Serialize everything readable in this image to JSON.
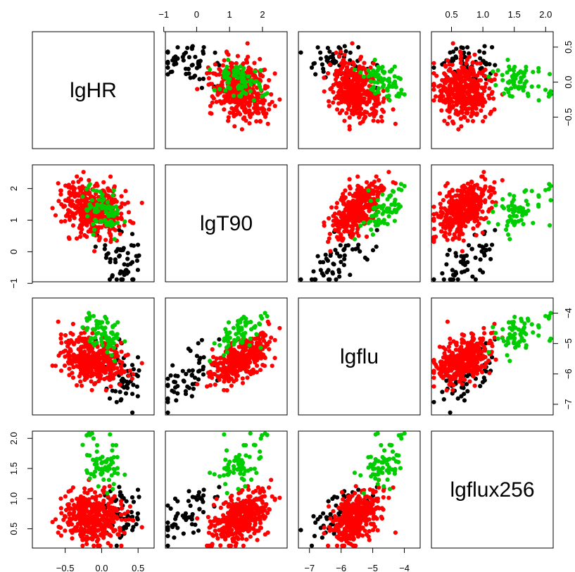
{
  "chart_data": {
    "type": "scatter",
    "subtype": "scatterplot-matrix",
    "variables": [
      "lgHR",
      "lgT90",
      "lgflu",
      "lgflux256"
    ],
    "ranges": {
      "lgHR": [
        -0.95,
        0.72
      ],
      "lgT90": [
        -0.95,
        2.75
      ],
      "lgflu": [
        -7.35,
        -3.5
      ],
      "lgflux256": [
        0.18,
        2.12
      ]
    },
    "axis_ticks": {
      "lgHR": [
        -0.5,
        0.0,
        0.5
      ],
      "lgT90": [
        -1,
        0,
        1,
        2
      ],
      "lgflu": [
        -7,
        -6,
        -5,
        -4
      ],
      "lgflux256": [
        0.5,
        1.0,
        1.5,
        2.0
      ]
    },
    "tick_labels": {
      "lgHR": [
        "−0.5",
        "0.0",
        "0.5"
      ],
      "lgT90": [
        "−1",
        "0",
        "1",
        "2"
      ],
      "lgflu": [
        "−7",
        "−6",
        "−5",
        "−4"
      ],
      "lgflux256": [
        "0.5",
        "1.0",
        "1.5",
        "2.0"
      ]
    },
    "groups": [
      {
        "color": "#000000",
        "n": 55,
        "mean": [
          0.3,
          -0.3,
          -6.1,
          0.75
        ],
        "sd": [
          0.18,
          0.45,
          0.45,
          0.28
        ]
      },
      {
        "color": "#FF0000",
        "n": 380,
        "mean": [
          -0.12,
          1.35,
          -5.55,
          0.7
        ],
        "sd": [
          0.24,
          0.45,
          0.4,
          0.22
        ]
      },
      {
        "color": "#00CD00",
        "n": 70,
        "mean": [
          0.02,
          1.3,
          -4.65,
          1.55
        ],
        "sd": [
          0.14,
          0.35,
          0.35,
          0.22
        ]
      }
    ],
    "grid": false,
    "legend": "none"
  }
}
